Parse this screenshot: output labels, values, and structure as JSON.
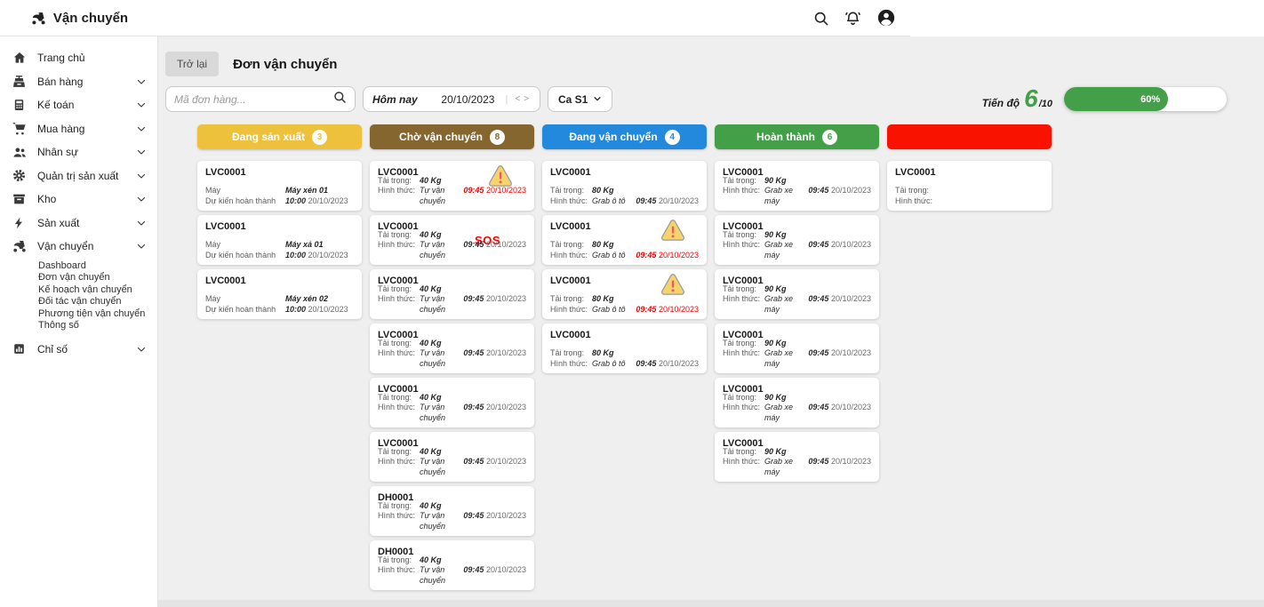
{
  "app": {
    "title": "Vận chuyển"
  },
  "sidebar": {
    "items": [
      {
        "label": "Trang chủ",
        "icon": "home-icon",
        "chevron": false
      },
      {
        "label": "Bán hàng",
        "icon": "cash-register-icon",
        "chevron": true
      },
      {
        "label": "Kế toán",
        "icon": "calculator-icon",
        "chevron": true
      },
      {
        "label": "Mua hàng",
        "icon": "cart-icon",
        "chevron": true
      },
      {
        "label": "Nhân sự",
        "icon": "people-icon",
        "chevron": true
      },
      {
        "label": "Quản trị sản xuất",
        "icon": "gears-icon",
        "chevron": true
      },
      {
        "label": "Kho",
        "icon": "warehouse-icon",
        "chevron": true
      },
      {
        "label": "Sản xuất",
        "icon": "bolt-icon",
        "chevron": true
      },
      {
        "label": "Vận chuyển",
        "icon": "scooter-icon",
        "chevron": true,
        "submenu": [
          "Dashboard",
          "Đơn vận chuyển",
          "Kế hoạch vận chuyển",
          "Đối tác vận chuyển",
          "Phương tiện vận chuyển",
          "Thông số"
        ]
      },
      {
        "label": "Chỉ số",
        "icon": "bar-chart-icon",
        "chevron": true
      }
    ]
  },
  "toolbar": {
    "back_label": "Trở lại",
    "page_title": "Đơn vận chuyển",
    "search_placeholder": "Mã đơn hàng...",
    "date_label": "Hôm nay",
    "date_value": "20/10/2023",
    "date_sep": "|",
    "date_prev": "<",
    "date_next": ">",
    "shift_value": "Ca S1",
    "progress_label": "Tiến độ",
    "progress_value": "6",
    "progress_total": "/10",
    "progress_percent": "60%",
    "progress_color": "#43A048"
  },
  "board": {
    "sos_label": "SOS",
    "field_labels": {
      "machine": "Máy",
      "eta": "Dự kiến hoàn thành",
      "load": "Tải trọng:",
      "method": "Hình thức:"
    },
    "columns": [
      {
        "title": "Đang sản xuất",
        "count": "3",
        "color": "#EDC13B",
        "cards": [
          {
            "code": "LVC0001",
            "machine": "Máy xén 01",
            "time": "10:00",
            "date": "20/10/2023"
          },
          {
            "code": "LVC0001",
            "machine": "Máy xả 01",
            "time": "10:00",
            "date": "20/10/2023"
          },
          {
            "code": "LVC0001",
            "machine": "Máy xén 02",
            "time": "10:00",
            "date": "20/10/2023"
          }
        ]
      },
      {
        "title": "Chờ vận chuyển",
        "count": "8",
        "color": "#85662F",
        "cards": [
          {
            "code": "LVC0001",
            "load": "40 Kg",
            "method": "Tự vận chuyển",
            "time": "09:45",
            "date": "20/10/2023",
            "alert": "warning",
            "overdue": true
          },
          {
            "code": "LVC0001",
            "load": "40 Kg",
            "method": "Tự vận chuyển",
            "time": "09:45",
            "date": "20/10/2023",
            "alert": "sos"
          },
          {
            "code": "LVC0001",
            "load": "40 Kg",
            "method": "Tự vận chuyển",
            "time": "09:45",
            "date": "20/10/2023"
          },
          {
            "code": "LVC0001",
            "load": "40 Kg",
            "method": "Tự vận chuyển",
            "time": "09:45",
            "date": "20/10/2023"
          },
          {
            "code": "LVC0001",
            "load": "40 Kg",
            "method": "Tự vận chuyển",
            "time": "09:45",
            "date": "20/10/2023"
          },
          {
            "code": "LVC0001",
            "load": "40 Kg",
            "method": "Tự vận chuyển",
            "time": "09:45",
            "date": "20/10/2023"
          },
          {
            "code": "DH0001",
            "load": "40 Kg",
            "method": "Tự vận chuyển",
            "time": "09:45",
            "date": "20/10/2023"
          },
          {
            "code": "DH0001",
            "load": "40 Kg",
            "method": "Tự vận chuyển",
            "time": "09:45",
            "date": "20/10/2023"
          }
        ]
      },
      {
        "title": "Đang vận chuyển",
        "count": "4",
        "color": "#2389DC",
        "cards": [
          {
            "code": "LVC0001",
            "load": "80 Kg",
            "method": "Grab ô tô",
            "time": "09:45",
            "date": "20/10/2023"
          },
          {
            "code": "LVC0001",
            "load": "80 Kg",
            "method": "Grab ô tô",
            "time": "09:45",
            "date": "20/10/2023",
            "alert": "warning",
            "overdue": true
          },
          {
            "code": "LVC0001",
            "load": "80 Kg",
            "method": "Grab ô tô",
            "time": "09:45",
            "date": "20/10/2023",
            "alert": "warning",
            "overdue": true
          },
          {
            "code": "LVC0001",
            "load": "80 Kg",
            "method": "Grab ô tô",
            "time": "09:45",
            "date": "20/10/2023"
          }
        ]
      },
      {
        "title": "Hoàn thành",
        "count": "6",
        "color": "#43A048",
        "cards": [
          {
            "code": "LVC0001",
            "load": "90 Kg",
            "method": "Grab xe máy",
            "time": "09:45",
            "date": "20/10/2023"
          },
          {
            "code": "LVC0001",
            "load": "90 Kg",
            "method": "Grab xe máy",
            "time": "09:45",
            "date": "20/10/2023"
          },
          {
            "code": "LVC0001",
            "load": "90 Kg",
            "method": "Grab xe máy",
            "time": "09:45",
            "date": "20/10/2023"
          },
          {
            "code": "LVC0001",
            "load": "90 Kg",
            "method": "Grab xe máy",
            "time": "09:45",
            "date": "20/10/2023"
          },
          {
            "code": "LVC0001",
            "load": "90 Kg",
            "method": "Grab xe máy",
            "time": "09:45",
            "date": "20/10/2023"
          },
          {
            "code": "LVC0001",
            "load": "90 Kg",
            "method": "Grab xe máy",
            "time": "09:45",
            "date": "20/10/2023"
          }
        ]
      },
      {
        "title": "",
        "count": "",
        "color": "#FA1200",
        "cards": [
          {
            "code": "LVC0001",
            "load": "",
            "method": "",
            "time": "",
            "date": ""
          }
        ]
      }
    ]
  }
}
